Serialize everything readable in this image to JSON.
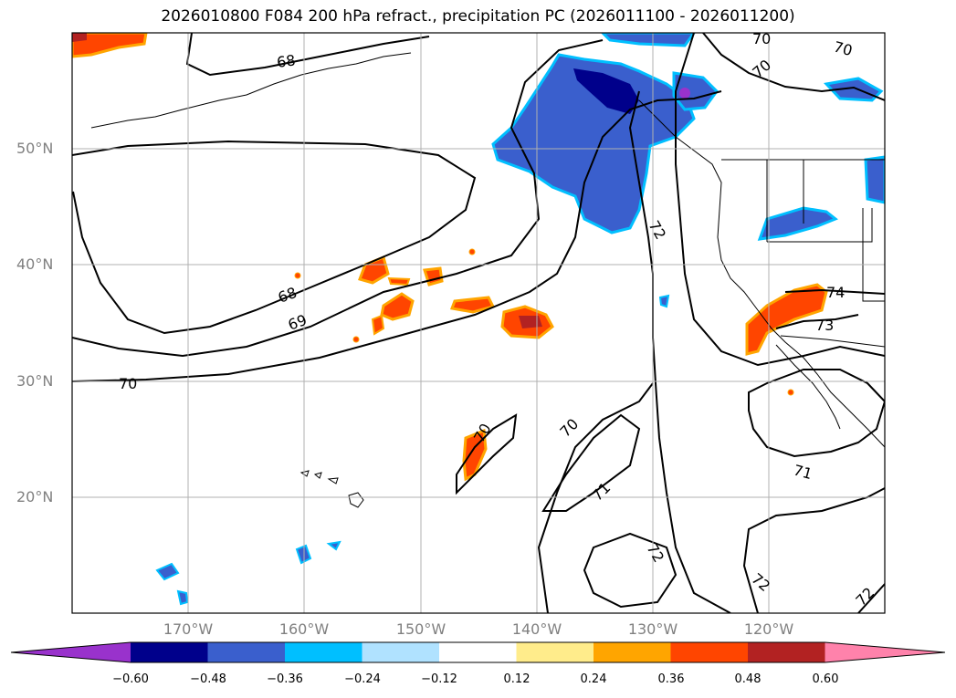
{
  "title": "2026010800 F084 200 hPa refract., precipitation PC (2026011100 - 2026011200)",
  "lat_labels": [
    "50°N",
    "40°N",
    "30°N",
    "20°N"
  ],
  "lon_labels": [
    "170°W",
    "160°W",
    "150°W",
    "140°W",
    "130°W",
    "120°W"
  ],
  "colorbar": {
    "ticks": [
      "−0.60",
      "−0.48",
      "−0.36",
      "−0.24",
      "−0.12",
      "0.12",
      "0.24",
      "0.36",
      "0.48",
      "0.60"
    ],
    "colors": [
      "#9932cc",
      "#00008b",
      "#3a5fcd",
      "#00bfff",
      "#b0e2ff",
      "#ffffff",
      "#ffec8b",
      "#ffa500",
      "#ff4500",
      "#b22222",
      "#ff82ab"
    ]
  },
  "contour_labels": [
    "68",
    "69",
    "70",
    "70",
    "70",
    "70",
    "70",
    "70",
    "71",
    "71",
    "72",
    "72",
    "72",
    "72",
    "73",
    "74",
    "68"
  ],
  "colors": {
    "negative_precip": "#3a5fcd",
    "positive_precip": "#ff4500",
    "grid": "#b0b0b0"
  }
}
